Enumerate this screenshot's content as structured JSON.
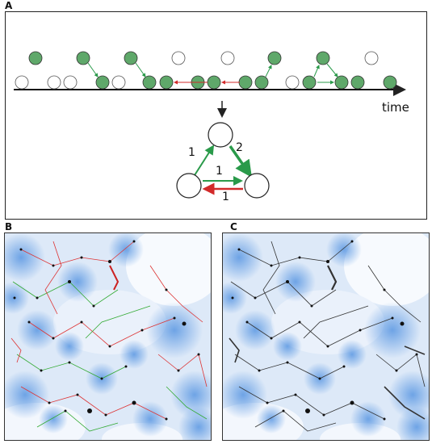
{
  "panels": {
    "a_label": "A",
    "b_label": "B",
    "c_label": "C"
  },
  "timeline": {
    "axis_label": "time"
  },
  "triangle": {
    "edge_weights": [
      "1",
      "2",
      "1",
      "1"
    ]
  },
  "colors": {
    "node_active": "#5fa86a",
    "node_inactive": "#ffffff",
    "edge_green": "#2a9a4a",
    "edge_red": "#d22a2a",
    "micro_blue": "#6fa5e8"
  }
}
